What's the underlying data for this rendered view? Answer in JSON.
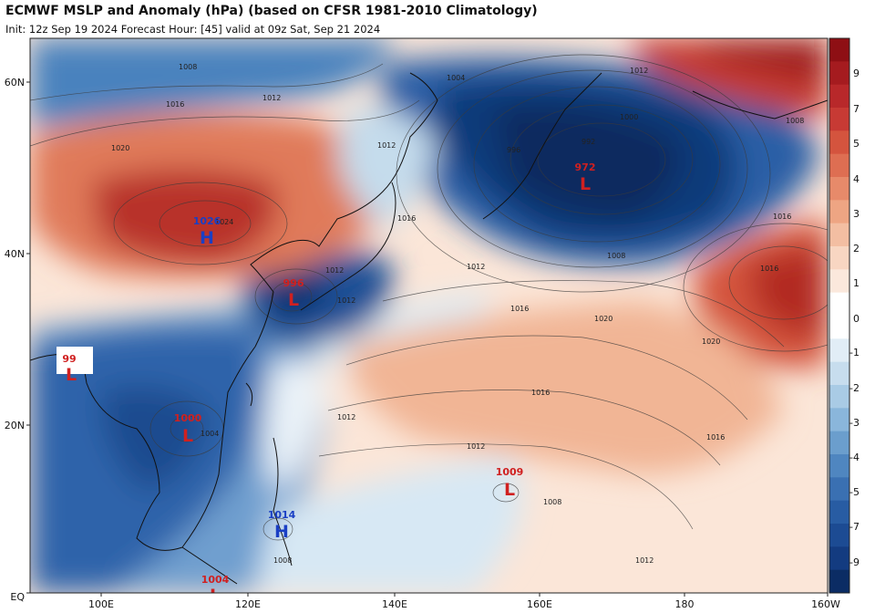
{
  "header": {
    "title": "ECMWF MSLP and Anomaly (hPa) (based on CFSR 1981-2010 Climatology)",
    "subtitle": "Init: 12z Sep 19 2024   Forecast Hour: [45]   valid at 09z Sat, Sep 21 2024"
  },
  "axes": {
    "lon_labels": [
      "100E",
      "120E",
      "140E",
      "160E",
      "180",
      "160W"
    ],
    "lat_labels": [
      "60N",
      "40N",
      "20N",
      "EQ"
    ]
  },
  "colorbar": {
    "labels": [
      "9",
      "7",
      "5",
      "4",
      "3",
      "2",
      "1",
      "0",
      "-1",
      "-2",
      "-3",
      "-4",
      "-5",
      "-7",
      "-9"
    ]
  },
  "pressure_centers": [
    {
      "id": "low-972",
      "type": "L",
      "value": "972",
      "color": "#d02020"
    },
    {
      "id": "high-1026",
      "type": "H",
      "value": "1026",
      "color": "#1a3fc4"
    },
    {
      "id": "low-996",
      "type": "L",
      "value": "996",
      "color": "#d02020"
    },
    {
      "id": "low-99x",
      "type": "L",
      "value": "99",
      "color": "#d02020"
    },
    {
      "id": "low-1000",
      "type": "L",
      "value": "1000",
      "color": "#d02020"
    },
    {
      "id": "low-1009",
      "type": "L",
      "value": "1009",
      "color": "#d02020"
    },
    {
      "id": "high-1014",
      "type": "H",
      "value": "1014",
      "color": "#1a3fc4"
    },
    {
      "id": "low-1004",
      "type": "L",
      "value": "1004",
      "color": "#d02020"
    }
  ],
  "isobar_labels": [
    "1008",
    "1012",
    "1016",
    "1020",
    "1024",
    "1004",
    "1000",
    "992",
    "996",
    "1008",
    "1012",
    "1016",
    "1016",
    "1012",
    "1012",
    "1016",
    "1020",
    "1020",
    "1016",
    "1012",
    "1016",
    "1012",
    "1008",
    "1004",
    "1012",
    "1008",
    "1012",
    "1008",
    "1016",
    "1012"
  ],
  "colors": {
    "deep_blue": "#0b2c64",
    "mid_blue": "#2f6bb2",
    "light_blue": "#9cc6e2",
    "deep_red": "#9e1a1a",
    "mid_red": "#d4543e",
    "light_red": "#f4c1a5"
  }
}
